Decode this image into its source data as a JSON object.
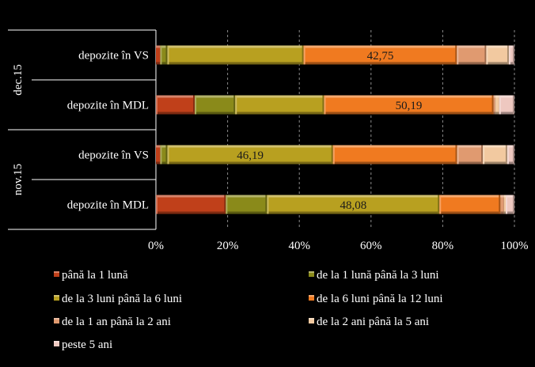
{
  "chart_data": {
    "type": "bar",
    "orientation": "horizontal",
    "stacked": "percent",
    "title": "",
    "xlabel": "",
    "ylabel": "",
    "xlim": [
      0,
      100
    ],
    "x_ticks": [
      "0%",
      "20%",
      "40%",
      "60%",
      "80%",
      "100%"
    ],
    "grid": true,
    "legend_position": "bottom",
    "groups": [
      {
        "label": "dec.15",
        "rows": [
          {
            "label": "depozite în VS",
            "values": [
              1.2,
              2.0,
              38.0,
              42.75,
              8.2,
              6.3,
              1.55
            ],
            "data_label": "42,75",
            "data_label_series": 3
          },
          {
            "label": "depozite în MDL",
            "values": [
              11.5,
              12.0,
              26.31,
              50.19,
              0.5,
              1.2,
              4.5
            ],
            "data_label": "50,19",
            "data_label_series": 3
          }
        ]
      },
      {
        "label": "nov.15",
        "rows": [
          {
            "label": "depozite în VS",
            "values": [
              1.2,
              2.0,
              46.19,
              34.61,
              7.2,
              6.8,
              2.0
            ],
            "data_label": "46,19",
            "data_label_series": 2
          },
          {
            "label": "depozite în MDL",
            "values": [
              19.5,
              11.5,
              48.08,
              17.0,
              1.0,
              0.5,
              2.42
            ],
            "data_label": "48,08",
            "data_label_series": 2
          }
        ]
      }
    ],
    "series": [
      {
        "name": "până la 1 lună",
        "color": "#C0401A"
      },
      {
        "name": "de la 1 lună până la 3 luni",
        "color": "#8A8A1A"
      },
      {
        "name": "de la 3 luni până la 6 luni",
        "color": "#B8A020"
      },
      {
        "name": "de la 6 luni până la 12 luni",
        "color": "#F07A20"
      },
      {
        "name": "de la 1 an până la 2 ani",
        "color": "#E09A70"
      },
      {
        "name": "de la 2 ani până la 5 ani",
        "color": "#F2C9A0"
      },
      {
        "name": "peste 5 ani",
        "color": "#EEC8C0"
      }
    ]
  }
}
